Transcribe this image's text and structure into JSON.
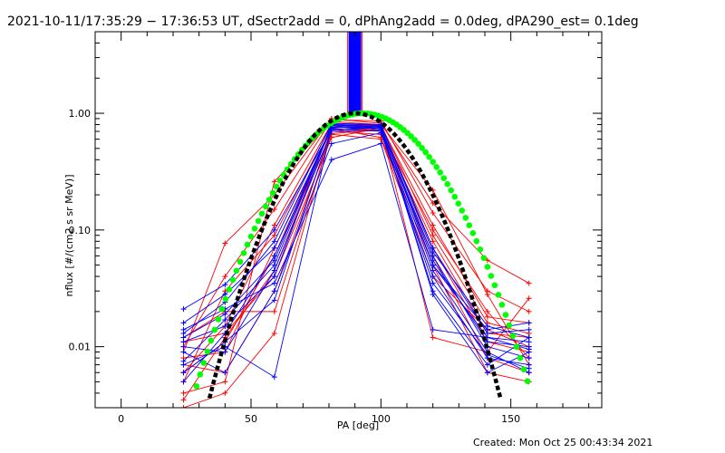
{
  "title": "2021-10-11/17:35:29 − 17:36:53 UT, dSectr2add = 0, dPhAng2add = 0.0deg, dPA290_est=  0.1deg",
  "footer": "Created: Mon Oct 25 00:43:34 2021",
  "chart_data": {
    "type": "line",
    "title": "2021-10-11/17:35:29 − 17:36:53 UT, dSectr2add = 0, dPhAng2add = 0.0deg, dPA290_est=  0.1deg",
    "xlabel": "PA [deg]",
    "ylabel": "nflux [#/(cm2 s sr MeV)]",
    "xlim": [
      -10,
      185
    ],
    "ylim": [
      0.003,
      5
    ],
    "yscale": "log",
    "x_ticks": [
      0,
      50,
      100,
      150
    ],
    "x_tick_labels": [
      "0",
      "50",
      "100",
      "150"
    ],
    "y_ticks": [
      0.01,
      0.1,
      1.0
    ],
    "y_tick_labels": [
      "0.01",
      "0.10",
      "1.00"
    ],
    "grid": false,
    "legend": "none",
    "colors": {
      "red": "#ff0000",
      "blue": "#0000ff",
      "green": "#00ff00",
      "black": "#000000"
    },
    "pa_bins": [
      24,
      40,
      59,
      81,
      100,
      120,
      141,
      157
    ],
    "marker": "plus",
    "series": [
      {
        "color": "#ff0000",
        "values": [
          0.006,
          0.011,
          0.06,
          0.67,
          0.72,
          0.08,
          0.013,
          0.012
        ]
      },
      {
        "color": "#ff0000",
        "values": [
          0.004,
          0.005,
          0.26,
          0.85,
          0.8,
          0.22,
          0.028,
          0.007
        ]
      },
      {
        "color": "#ff0000",
        "values": [
          0.009,
          0.077,
          0.2,
          0.9,
          0.82,
          0.17,
          0.055,
          0.035
        ]
      },
      {
        "color": "#ff0000",
        "values": [
          0.011,
          0.013,
          0.04,
          0.62,
          0.75,
          0.012,
          0.009,
          0.026
        ]
      },
      {
        "color": "#ff0000",
        "values": [
          0.0035,
          0.012,
          0.045,
          0.78,
          0.7,
          0.1,
          0.02,
          0.008
        ]
      },
      {
        "color": "#ff0000",
        "values": [
          0.007,
          0.006,
          0.03,
          0.7,
          0.66,
          0.06,
          0.008,
          0.006
        ]
      },
      {
        "color": "#ff0000",
        "values": [
          0.012,
          0.02,
          0.02,
          0.66,
          0.6,
          0.04,
          0.014,
          0.01
        ]
      },
      {
        "color": "#ff0000",
        "values": [
          0.005,
          0.03,
          0.09,
          0.8,
          0.78,
          0.11,
          0.018,
          0.016
        ]
      },
      {
        "color": "#ff0000",
        "values": [
          0.003,
          0.004,
          0.013,
          0.74,
          0.62,
          0.05,
          0.006,
          0.005
        ]
      },
      {
        "color": "#ff0000",
        "values": [
          0.01,
          0.04,
          0.15,
          0.88,
          0.86,
          0.14,
          0.03,
          0.02
        ]
      },
      {
        "color": "#ff0000",
        "values": [
          0.008,
          0.009,
          0.07,
          0.72,
          0.74,
          0.07,
          0.011,
          0.009
        ]
      },
      {
        "color": "#ff0000",
        "values": [
          0.006,
          0.015,
          0.11,
          0.82,
          0.8,
          0.09,
          0.016,
          0.013
        ]
      },
      {
        "color": "#0000ff",
        "values": [
          0.021,
          0.034,
          0.1,
          0.72,
          0.76,
          0.05,
          0.014,
          0.016
        ]
      },
      {
        "color": "#0000ff",
        "values": [
          0.011,
          0.015,
          0.04,
          0.8,
          0.75,
          0.03,
          0.007,
          0.012
        ]
      },
      {
        "color": "#0000ff",
        "values": [
          0.007,
          0.01,
          0.0055,
          0.75,
          0.78,
          0.028,
          0.006,
          0.009
        ]
      },
      {
        "color": "#0000ff",
        "values": [
          0.014,
          0.021,
          0.035,
          0.4,
          0.55,
          0.014,
          0.012,
          0.011
        ]
      },
      {
        "color": "#0000ff",
        "values": [
          0.009,
          0.006,
          0.03,
          0.55,
          0.68,
          0.04,
          0.008,
          0.007
        ]
      },
      {
        "color": "#0000ff",
        "values": [
          0.005,
          0.013,
          0.06,
          0.78,
          0.74,
          0.06,
          0.01,
          0.008
        ]
      },
      {
        "color": "#0000ff",
        "values": [
          0.013,
          0.024,
          0.08,
          0.82,
          0.8,
          0.07,
          0.013,
          0.014
        ]
      },
      {
        "color": "#0000ff",
        "values": [
          0.01,
          0.009,
          0.045,
          0.7,
          0.72,
          0.045,
          0.009,
          0.006
        ]
      },
      {
        "color": "#0000ff",
        "values": [
          0.016,
          0.028,
          0.07,
          0.76,
          0.74,
          0.055,
          0.011,
          0.01
        ]
      },
      {
        "color": "#0000ff",
        "values": [
          0.0075,
          0.017,
          0.05,
          0.8,
          0.79,
          0.065,
          0.015,
          0.012
        ]
      },
      {
        "color": "#0000ff",
        "values": [
          0.006,
          0.011,
          0.025,
          0.74,
          0.7,
          0.035,
          0.0085,
          0.0065
        ]
      },
      {
        "color": "#0000ff",
        "values": [
          0.012,
          0.019,
          0.055,
          0.79,
          0.77,
          0.05,
          0.012,
          0.0095
        ]
      }
    ],
    "spike": {
      "x": 90,
      "color_main": "#0000ff",
      "color_edge": "#ff0000"
    },
    "fits": [
      {
        "color": "#00ff00",
        "style": "dots",
        "x_start": 29,
        "x_end": 157,
        "peak_x": 93,
        "peak_y": 1.0,
        "sigma_deg": 19.5
      },
      {
        "color": "#000000",
        "style": "dashed",
        "x_start": 34,
        "x_end": 146,
        "peak_x": 90,
        "peak_y": 1.0,
        "sigma_deg": 16.7
      }
    ]
  }
}
